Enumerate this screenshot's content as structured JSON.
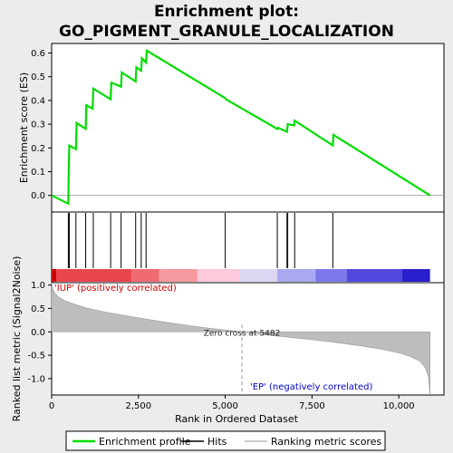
{
  "title_line1": "Enrichment plot:",
  "title_line2": "GO_PIGMENT_GRANULE_LOCALIZATION",
  "chart_data": {
    "type": "line",
    "es_panel": {
      "ylabel": "Enrichment score (ES)",
      "ylim": [
        -0.07,
        0.64
      ],
      "yticks": [
        0.0,
        0.1,
        0.2,
        0.3,
        0.4,
        0.5,
        0.6
      ],
      "ytick_labels": [
        "0.0",
        "0.1",
        "0.2",
        "0.3",
        "0.4",
        "0.5",
        "0.6"
      ],
      "series": [
        {
          "name": "Enrichment profile",
          "color": "#00dd00",
          "x": [
            0,
            480,
            490,
            510,
            700,
            720,
            980,
            1000,
            1180,
            1200,
            1700,
            1720,
            2000,
            2020,
            2420,
            2440,
            2580,
            2600,
            2720,
            2740,
            5000,
            5020,
            6500,
            6520,
            6780,
            6800,
            6980,
            7000,
            8100,
            8120,
            10900
          ],
          "y": [
            0.0,
            -0.035,
            0.085,
            0.21,
            0.195,
            0.305,
            0.28,
            0.38,
            0.365,
            0.45,
            0.405,
            0.475,
            0.458,
            0.518,
            0.48,
            0.54,
            0.525,
            0.578,
            0.56,
            0.61,
            0.41,
            0.405,
            0.28,
            0.285,
            0.268,
            0.3,
            0.295,
            0.315,
            0.21,
            0.255,
            0.0
          ]
        }
      ]
    },
    "hits": [
      480,
      510,
      700,
      980,
      1200,
      1700,
      2000,
      2420,
      2580,
      2720,
      5000,
      6500,
      6780,
      6800,
      7000,
      8100
    ],
    "ranked_panel": {
      "ylabel": "Ranked list metric (Signal2Noise)",
      "ylim": [
        -1.35,
        1.05
      ],
      "yticks": [
        1.0,
        0.5,
        0.0,
        -0.5,
        -1.0
      ],
      "ytick_labels": [
        "1.0",
        "0.5",
        "0.0",
        "-0.5",
        "-1.0"
      ],
      "x": [
        0,
        30,
        100,
        200,
        400,
        700,
        1000,
        1500,
        2000,
        2500,
        3000,
        3500,
        4000,
        4500,
        5000,
        5482,
        6000,
        6500,
        7000,
        7500,
        8000,
        8500,
        9000,
        9500,
        10000,
        10300,
        10600,
        10750,
        10850,
        10900
      ],
      "values": [
        1.05,
        0.92,
        0.82,
        0.74,
        0.66,
        0.58,
        0.51,
        0.43,
        0.36,
        0.3,
        0.24,
        0.18,
        0.13,
        0.08,
        0.04,
        0.0,
        -0.05,
        -0.09,
        -0.13,
        -0.17,
        -0.21,
        -0.26,
        -0.31,
        -0.37,
        -0.45,
        -0.52,
        -0.62,
        -0.75,
        -0.95,
        -1.35
      ],
      "zero_cross_label": "Zero cross at 5482",
      "pos_label": "'IUP' (positively correlated)",
      "neg_label": "'EP' (negatively correlated)"
    },
    "xaxis": {
      "xlabel": "Rank in Ordered Dataset",
      "xlim": [
        0,
        11300
      ],
      "xticks": [
        0,
        2500,
        5000,
        7500,
        10000
      ],
      "xtick_labels": [
        "0",
        "2,500",
        "5,000",
        "7,500",
        "10,000"
      ]
    },
    "colorbar": [
      {
        "to": 130,
        "color": "#cc0000"
      },
      {
        "to": 2300,
        "color": "#e8454f"
      },
      {
        "to": 3100,
        "color": "#f06a72"
      },
      {
        "to": 4200,
        "color": "#f59aa0"
      },
      {
        "to": 5400,
        "color": "#fcc9dd"
      },
      {
        "to": 6500,
        "color": "#dcd8f4"
      },
      {
        "to": 7600,
        "color": "#aaa8f0"
      },
      {
        "to": 8500,
        "color": "#7a78ea"
      },
      {
        "to": 10100,
        "color": "#5047dd"
      },
      {
        "to": 10900,
        "color": "#2a1fcc"
      }
    ],
    "legend": [
      {
        "label": "Enrichment profile",
        "color": "#00dd00",
        "kind": "line"
      },
      {
        "label": "Hits",
        "color": "#000000",
        "kind": "line"
      },
      {
        "label": "Ranking metric scores",
        "color": "#bbbbbb",
        "kind": "line"
      }
    ]
  }
}
